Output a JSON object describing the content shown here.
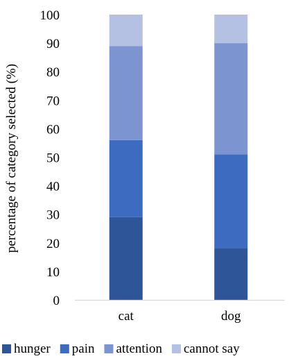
{
  "chart_data": {
    "type": "bar",
    "stacked": true,
    "title": "",
    "xlabel": "",
    "ylabel": "percentage of category selected (%)",
    "ylim": [
      0,
      100
    ],
    "yticks": [
      0,
      10,
      20,
      30,
      40,
      50,
      60,
      70,
      80,
      90,
      100
    ],
    "categories": [
      "cat",
      "dog"
    ],
    "series": [
      {
        "name": "hunger",
        "color": "#2e5597",
        "values": [
          29,
          18
        ]
      },
      {
        "name": "pain",
        "color": "#3d6bbf",
        "values": [
          27,
          33
        ]
      },
      {
        "name": "attention",
        "color": "#7c95d0",
        "values": [
          33,
          39
        ]
      },
      {
        "name": "cannot say",
        "color": "#b5c1e2",
        "values": [
          11,
          10
        ]
      }
    ],
    "grid": false,
    "legend_position": "bottom"
  }
}
